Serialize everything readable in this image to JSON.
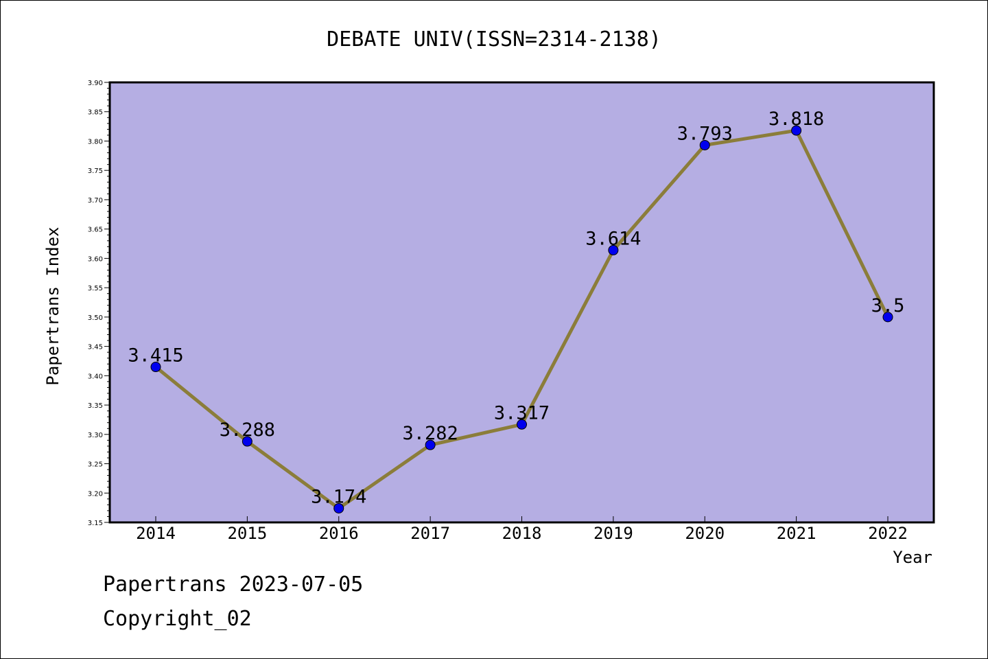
{
  "chart_data": {
    "type": "line",
    "title": "DEBATE UNIV(ISSN=2314-2138)",
    "xlabel": "Year",
    "ylabel": "Papertrans Index",
    "categories": [
      "2014",
      "2015",
      "2016",
      "2017",
      "2018",
      "2019",
      "2020",
      "2021",
      "2022"
    ],
    "series": [
      {
        "values": [
          3.415,
          3.288,
          3.174,
          3.282,
          3.317,
          3.614,
          3.793,
          3.818,
          3.5
        ],
        "labels": [
          "3.415",
          "3.288",
          "3.174",
          "3.282",
          "3.317",
          "3.614",
          "3.793",
          "3.818",
          "3.5"
        ]
      }
    ],
    "ylim": [
      3.15,
      3.9
    ],
    "yticks": [
      "3.15",
      "3.20",
      "3.25",
      "3.30",
      "3.35",
      "3.40",
      "3.45",
      "3.50",
      "3.55",
      "3.60",
      "3.65",
      "3.70",
      "3.75",
      "3.80",
      "3.85",
      "3.90"
    ],
    "grid": false,
    "colors": {
      "plot_background": "#b5aee3",
      "line": "#8b7d3a",
      "marker": "#0000ee"
    }
  },
  "footer": {
    "date": "Papertrans 2023-07-05",
    "copyright": "Copyright_02"
  }
}
